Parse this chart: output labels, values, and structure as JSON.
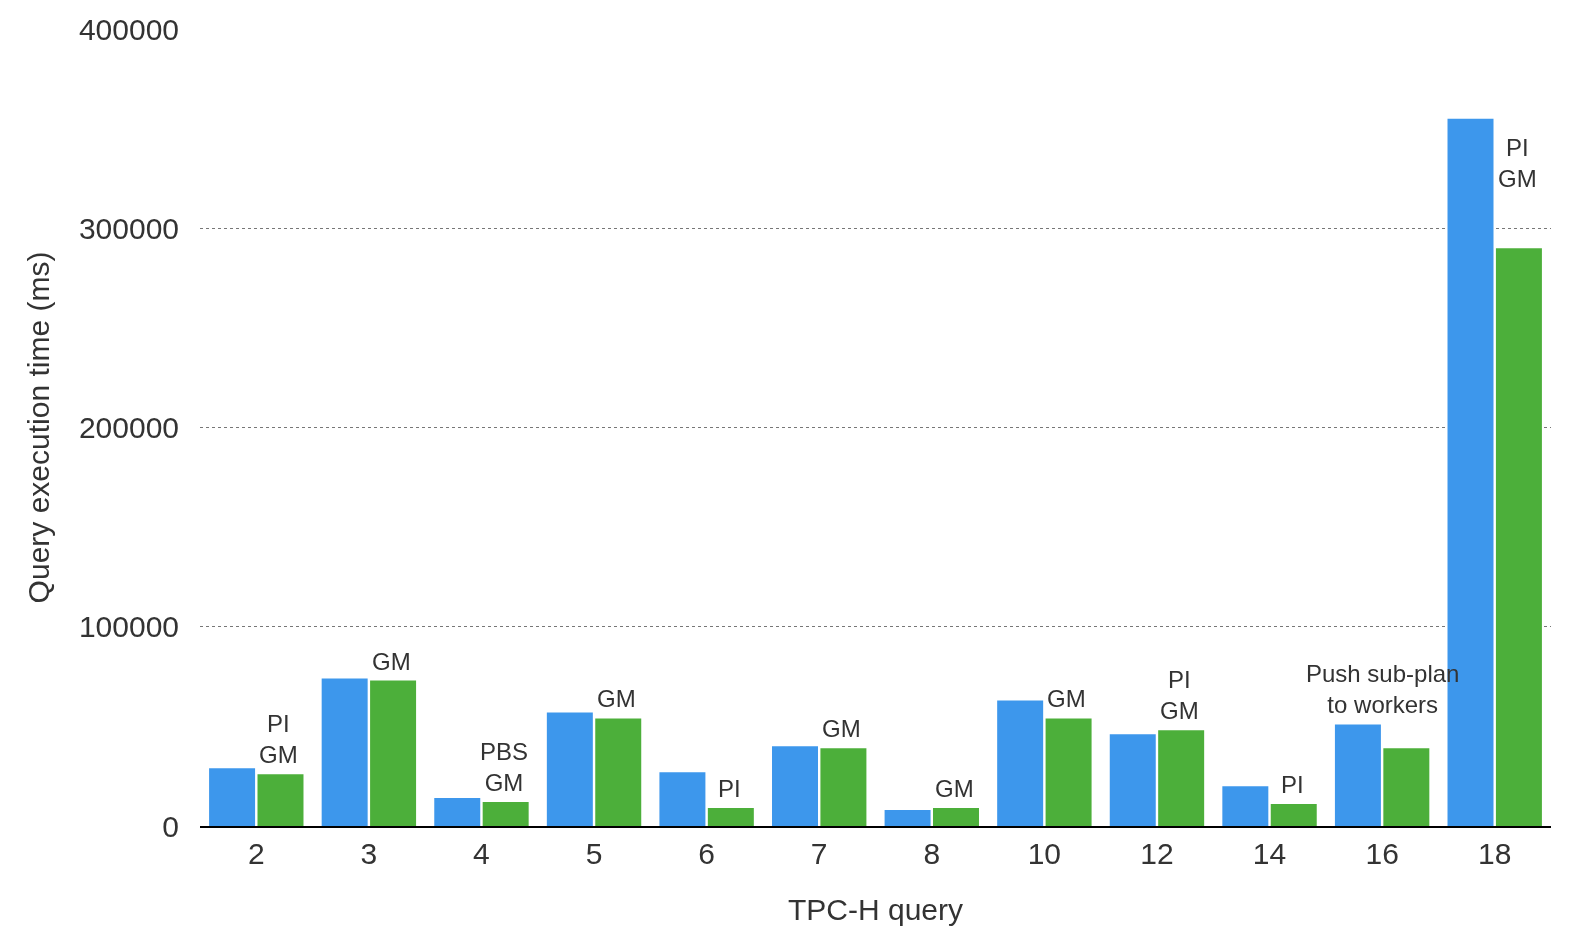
{
  "chart_data": {
    "type": "bar",
    "xlabel": "TPC-H query",
    "ylabel": "Query execution time (ms)",
    "categories": [
      "2",
      "3",
      "4",
      "5",
      "6",
      "7",
      "8",
      "10",
      "12",
      "14",
      "16",
      "18"
    ],
    "series": [
      {
        "color": "#3d97ec",
        "values": [
          29000,
          74000,
          14000,
          57000,
          27000,
          40000,
          8000,
          63000,
          46000,
          20000,
          51000,
          355000
        ]
      },
      {
        "color": "#4caf3a",
        "values": [
          26000,
          73000,
          12000,
          54000,
          9000,
          39000,
          9000,
          54000,
          48000,
          11000,
          39000,
          290000
        ]
      }
    ],
    "ylim": [
      0,
      400000
    ],
    "yticks": [
      0,
      100000,
      200000,
      300000,
      400000
    ],
    "grid": "y",
    "annotations": [
      {
        "text": "PI\nGM",
        "x": "2",
        "y": 26000
      },
      {
        "text": "GM",
        "x": "3",
        "y": 73000
      },
      {
        "text": "PBS\nGM",
        "x": "4",
        "y": 12000
      },
      {
        "text": "GM",
        "x": "5",
        "y": 54000
      },
      {
        "text": "PI",
        "x": "6",
        "y": 9000
      },
      {
        "text": "GM",
        "x": "7",
        "y": 39000
      },
      {
        "text": "GM",
        "x": "8",
        "y": 9000
      },
      {
        "text": "GM",
        "x": "10",
        "y": 54000
      },
      {
        "text": "PI\nGM",
        "x": "12",
        "y": 48000
      },
      {
        "text": "PI",
        "x": "14",
        "y": 11000
      },
      {
        "text": "Push sub-plan\nto workers",
        "x": "16",
        "y": 51000
      },
      {
        "text": "PI\nGM",
        "x": "18",
        "y": 315000
      }
    ]
  }
}
